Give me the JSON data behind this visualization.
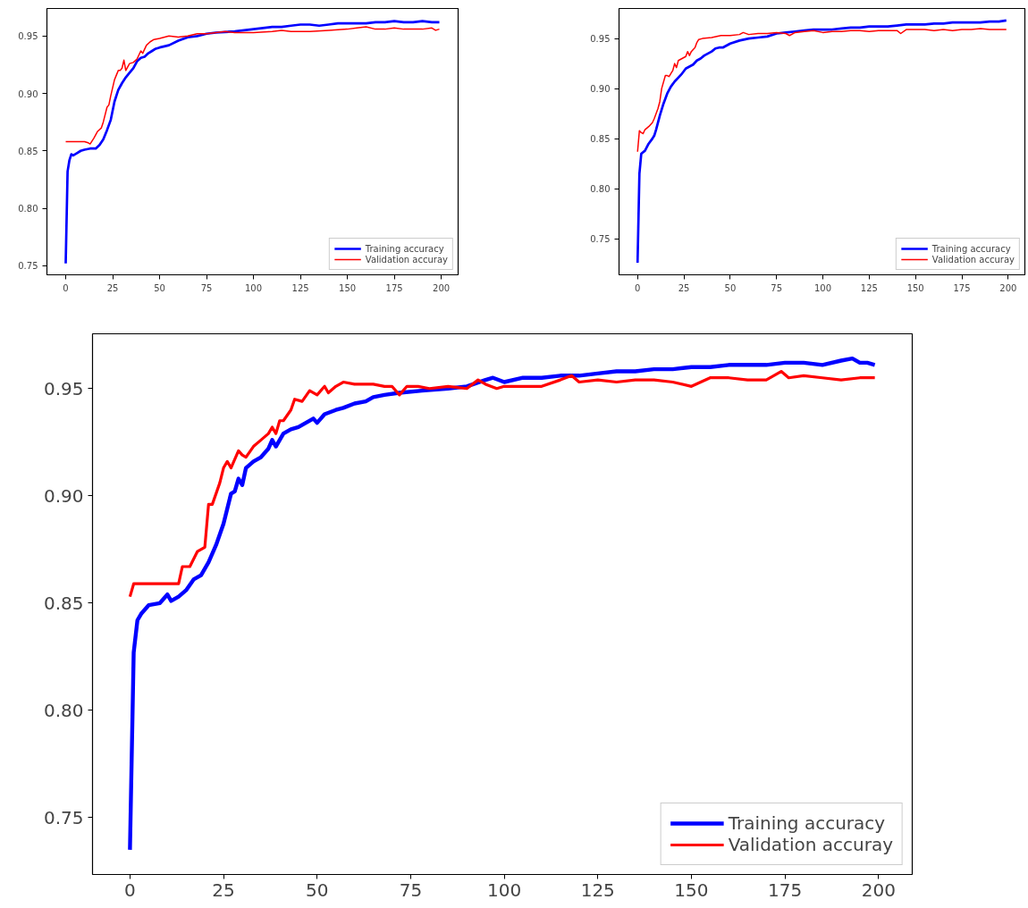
{
  "chart_data": [
    {
      "type": "line",
      "legend": "bottom right",
      "grid": false,
      "xlim": [
        -10,
        209
      ],
      "ylim": [
        0.742,
        0.974
      ],
      "xticks": [
        0,
        25,
        50,
        75,
        100,
        125,
        150,
        175,
        200
      ],
      "yticks": [
        {
          "value": 0.75,
          "label": "0.75"
        },
        {
          "value": 0.8,
          "label": "0.80"
        },
        {
          "value": 0.85,
          "label": "0.85"
        },
        {
          "value": 0.9,
          "label": "0.90"
        },
        {
          "value": 0.95,
          "label": "0.95"
        }
      ],
      "series": [
        {
          "name": "Training accuracy",
          "color": "#0000ff",
          "x": [
            0,
            1,
            2,
            3,
            4,
            6,
            8,
            10,
            13,
            16,
            18,
            20,
            22,
            24,
            26,
            28,
            30,
            32,
            34,
            36,
            38,
            40,
            42,
            44,
            46,
            48,
            50,
            55,
            60,
            65,
            70,
            75,
            80,
            90,
            100,
            105,
            110,
            115,
            120,
            125,
            130,
            135,
            140,
            145,
            150,
            155,
            160,
            165,
            170,
            175,
            180,
            185,
            190,
            195,
            199
          ],
          "values": [
            0.752,
            0.832,
            0.842,
            0.847,
            0.846,
            0.848,
            0.85,
            0.851,
            0.852,
            0.852,
            0.855,
            0.86,
            0.868,
            0.877,
            0.893,
            0.903,
            0.909,
            0.914,
            0.918,
            0.922,
            0.928,
            0.931,
            0.932,
            0.935,
            0.937,
            0.939,
            0.94,
            0.942,
            0.946,
            0.949,
            0.95,
            0.952,
            0.953,
            0.954,
            0.956,
            0.957,
            0.958,
            0.958,
            0.959,
            0.96,
            0.96,
            0.959,
            0.96,
            0.961,
            0.961,
            0.961,
            0.961,
            0.962,
            0.962,
            0.963,
            0.962,
            0.962,
            0.963,
            0.962,
            0.962
          ]
        },
        {
          "name": "Validation accuray",
          "color": "#ff0000",
          "x": [
            0,
            1,
            10,
            12,
            13,
            15,
            17,
            19,
            20,
            22,
            23,
            24,
            26,
            28,
            29,
            30,
            31,
            32,
            34,
            36,
            38,
            40,
            41,
            43,
            45,
            47,
            50,
            55,
            60,
            65,
            70,
            75,
            80,
            85,
            90,
            100,
            110,
            115,
            120,
            125,
            130,
            140,
            150,
            155,
            160,
            165,
            170,
            175,
            180,
            185,
            190,
            195,
            197,
            199
          ],
          "values": [
            0.858,
            0.858,
            0.858,
            0.857,
            0.856,
            0.861,
            0.867,
            0.87,
            0.875,
            0.888,
            0.89,
            0.898,
            0.912,
            0.92,
            0.92,
            0.922,
            0.929,
            0.92,
            0.926,
            0.927,
            0.93,
            0.937,
            0.935,
            0.942,
            0.945,
            0.947,
            0.948,
            0.95,
            0.949,
            0.95,
            0.952,
            0.952,
            0.953,
            0.954,
            0.953,
            0.953,
            0.954,
            0.955,
            0.954,
            0.954,
            0.954,
            0.955,
            0.956,
            0.957,
            0.958,
            0.956,
            0.956,
            0.957,
            0.956,
            0.956,
            0.956,
            0.957,
            0.955,
            0.956
          ]
        }
      ]
    },
    {
      "type": "line",
      "legend": "bottom right",
      "grid": false,
      "xlim": [
        -10,
        209
      ],
      "ylim": [
        0.714,
        0.98
      ],
      "xticks": [
        0,
        25,
        50,
        75,
        100,
        125,
        150,
        175,
        200
      ],
      "yticks": [
        {
          "value": 0.75,
          "label": "0.75"
        },
        {
          "value": 0.8,
          "label": "0.80"
        },
        {
          "value": 0.85,
          "label": "0.85"
        },
        {
          "value": 0.9,
          "label": "0.90"
        },
        {
          "value": 0.95,
          "label": "0.95"
        }
      ],
      "series": [
        {
          "name": "Training accuracy",
          "color": "#0000ff",
          "x": [
            0,
            1,
            2,
            4,
            6,
            8,
            9,
            10,
            12,
            14,
            16,
            18,
            20,
            22,
            24,
            26,
            28,
            30,
            32,
            34,
            36,
            38,
            40,
            42,
            44,
            46,
            48,
            50,
            55,
            60,
            65,
            70,
            75,
            80,
            85,
            90,
            95,
            100,
            105,
            110,
            115,
            120,
            125,
            130,
            135,
            140,
            145,
            150,
            155,
            160,
            165,
            170,
            175,
            180,
            185,
            190,
            195,
            199
          ],
          "values": [
            0.726,
            0.815,
            0.835,
            0.838,
            0.845,
            0.85,
            0.853,
            0.859,
            0.873,
            0.885,
            0.895,
            0.902,
            0.907,
            0.911,
            0.915,
            0.92,
            0.922,
            0.924,
            0.928,
            0.93,
            0.933,
            0.935,
            0.937,
            0.94,
            0.941,
            0.941,
            0.943,
            0.945,
            0.948,
            0.95,
            0.951,
            0.952,
            0.955,
            0.956,
            0.957,
            0.958,
            0.959,
            0.959,
            0.959,
            0.96,
            0.961,
            0.961,
            0.962,
            0.962,
            0.962,
            0.963,
            0.964,
            0.964,
            0.964,
            0.965,
            0.965,
            0.966,
            0.966,
            0.966,
            0.966,
            0.967,
            0.967,
            0.968
          ]
        },
        {
          "name": "Validation accuray",
          "color": "#ff0000",
          "x": [
            0,
            1,
            2,
            3,
            4,
            6,
            8,
            9,
            11,
            12,
            13,
            15,
            16,
            17,
            19,
            20,
            21,
            22,
            24,
            26,
            27,
            28,
            29,
            31,
            32,
            33,
            35,
            40,
            45,
            50,
            55,
            57,
            60,
            65,
            70,
            75,
            80,
            82,
            85,
            90,
            95,
            100,
            105,
            110,
            115,
            120,
            125,
            130,
            135,
            140,
            142,
            145,
            150,
            155,
            160,
            165,
            170,
            175,
            180,
            185,
            190,
            195,
            199
          ],
          "values": [
            0.837,
            0.858,
            0.856,
            0.855,
            0.859,
            0.862,
            0.866,
            0.87,
            0.88,
            0.887,
            0.9,
            0.913,
            0.913,
            0.912,
            0.918,
            0.925,
            0.921,
            0.928,
            0.93,
            0.932,
            0.937,
            0.933,
            0.937,
            0.941,
            0.946,
            0.949,
            0.95,
            0.951,
            0.953,
            0.953,
            0.954,
            0.956,
            0.954,
            0.955,
            0.955,
            0.956,
            0.955,
            0.953,
            0.956,
            0.957,
            0.958,
            0.956,
            0.957,
            0.957,
            0.958,
            0.958,
            0.957,
            0.958,
            0.958,
            0.958,
            0.955,
            0.959,
            0.959,
            0.959,
            0.958,
            0.959,
            0.958,
            0.959,
            0.959,
            0.96,
            0.959,
            0.959,
            0.959
          ]
        }
      ]
    },
    {
      "type": "line",
      "legend": "bottom right",
      "grid": false,
      "xlim": [
        -10,
        209
      ],
      "ylim": [
        0.7235,
        0.9755
      ],
      "xticks": [
        0,
        25,
        50,
        75,
        100,
        125,
        150,
        175,
        200
      ],
      "yticks": [
        {
          "value": 0.75,
          "label": "0.75"
        },
        {
          "value": 0.8,
          "label": "0.80"
        },
        {
          "value": 0.85,
          "label": "0.85"
        },
        {
          "value": 0.9,
          "label": "0.90"
        },
        {
          "value": 0.95,
          "label": "0.95"
        }
      ],
      "series": [
        {
          "name": "Training accuracy",
          "color": "#0000ff",
          "x": [
            0,
            1,
            2,
            3,
            5,
            8,
            10,
            11,
            13,
            15,
            17,
            19,
            21,
            23,
            25,
            27,
            28,
            29,
            30,
            31,
            33,
            35,
            37,
            38,
            39,
            41,
            43,
            45,
            47,
            49,
            50,
            52,
            55,
            57,
            60,
            63,
            65,
            68,
            72,
            78,
            85,
            90,
            95,
            97,
            100,
            105,
            110,
            115,
            120,
            125,
            130,
            135,
            140,
            145,
            150,
            155,
            160,
            165,
            170,
            175,
            180,
            185,
            190,
            193,
            195,
            197,
            199
          ],
          "values": [
            0.735,
            0.827,
            0.842,
            0.845,
            0.849,
            0.85,
            0.854,
            0.851,
            0.853,
            0.856,
            0.861,
            0.863,
            0.869,
            0.877,
            0.887,
            0.901,
            0.902,
            0.908,
            0.905,
            0.913,
            0.916,
            0.918,
            0.922,
            0.926,
            0.923,
            0.929,
            0.931,
            0.932,
            0.934,
            0.936,
            0.934,
            0.938,
            0.94,
            0.941,
            0.943,
            0.944,
            0.946,
            0.947,
            0.948,
            0.949,
            0.95,
            0.951,
            0.954,
            0.955,
            0.953,
            0.955,
            0.955,
            0.956,
            0.956,
            0.957,
            0.958,
            0.958,
            0.959,
            0.959,
            0.96,
            0.96,
            0.961,
            0.961,
            0.961,
            0.962,
            0.962,
            0.961,
            0.963,
            0.964,
            0.962,
            0.962,
            0.961
          ]
        },
        {
          "name": "Validation accuray",
          "color": "#ff0000",
          "x": [
            0,
            1,
            2,
            13,
            14,
            16,
            18,
            20,
            21,
            22,
            24,
            25,
            26,
            27,
            29,
            30,
            31,
            33,
            35,
            37,
            38,
            39,
            40,
            41,
            43,
            44,
            46,
            48,
            50,
            52,
            53,
            55,
            57,
            60,
            63,
            65,
            68,
            70,
            72,
            74,
            77,
            80,
            85,
            90,
            93,
            95,
            98,
            100,
            105,
            110,
            115,
            118,
            120,
            125,
            130,
            135,
            140,
            145,
            150,
            155,
            160,
            165,
            170,
            174,
            176,
            180,
            185,
            190,
            195,
            199
          ],
          "values": [
            0.853,
            0.859,
            0.859,
            0.859,
            0.867,
            0.867,
            0.874,
            0.876,
            0.896,
            0.896,
            0.906,
            0.913,
            0.916,
            0.913,
            0.921,
            0.919,
            0.918,
            0.923,
            0.926,
            0.929,
            0.932,
            0.929,
            0.935,
            0.935,
            0.94,
            0.945,
            0.944,
            0.949,
            0.947,
            0.951,
            0.948,
            0.951,
            0.953,
            0.952,
            0.952,
            0.952,
            0.951,
            0.951,
            0.947,
            0.951,
            0.951,
            0.95,
            0.951,
            0.95,
            0.954,
            0.952,
            0.95,
            0.951,
            0.951,
            0.951,
            0.954,
            0.956,
            0.953,
            0.954,
            0.953,
            0.954,
            0.954,
            0.953,
            0.951,
            0.955,
            0.955,
            0.954,
            0.954,
            0.958,
            0.955,
            0.956,
            0.955,
            0.954,
            0.955,
            0.955
          ]
        }
      ]
    }
  ]
}
